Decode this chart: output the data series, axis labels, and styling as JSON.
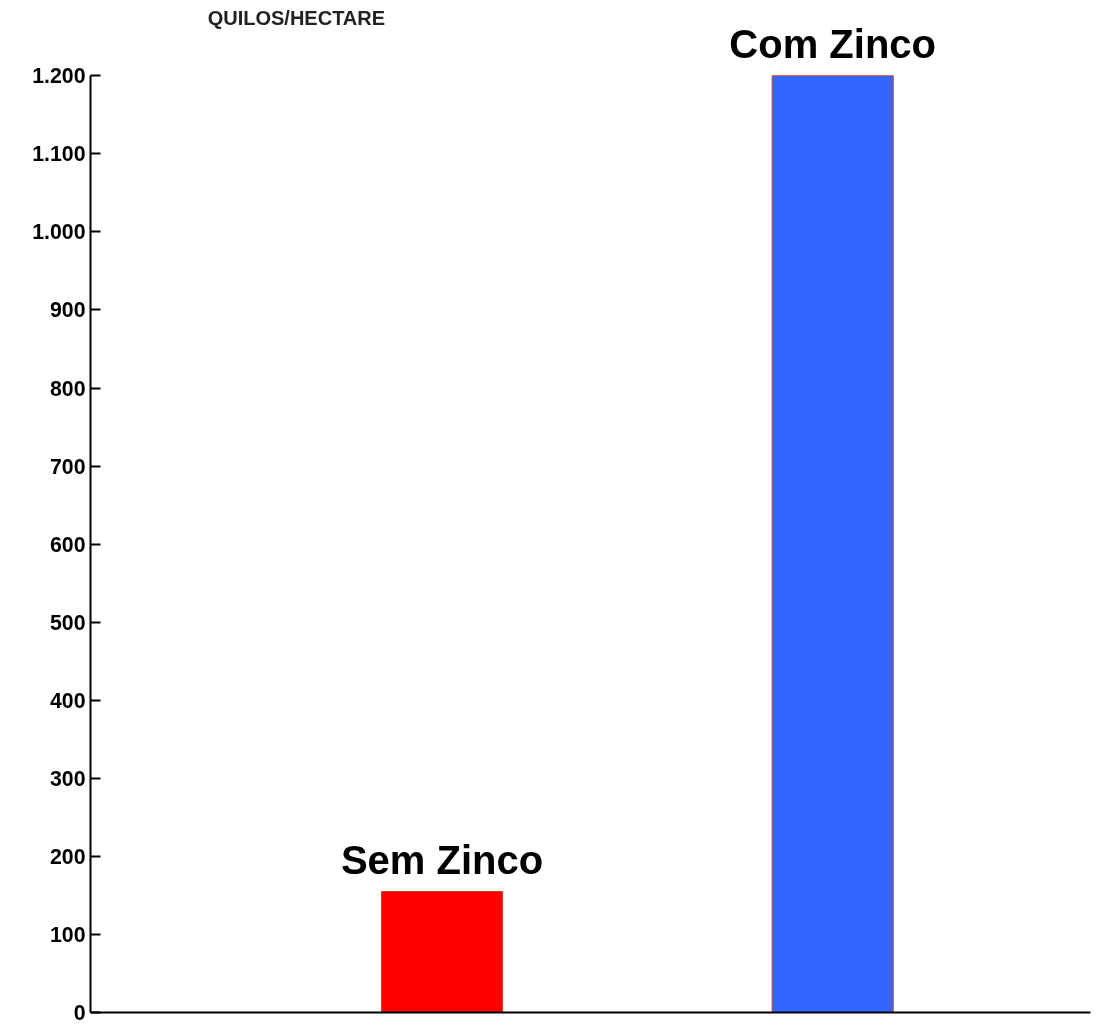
{
  "chart_data": {
    "type": "bar",
    "ylabel": "QUILOS/HECTARE",
    "categories": [
      "Sem Zinco",
      "Com Zinco"
    ],
    "values": [
      155,
      1200
    ],
    "colors": [
      "#ff0000",
      "#3366ff"
    ],
    "ylim": [
      0,
      1200
    ],
    "yticks": [
      0,
      100,
      200,
      300,
      400,
      500,
      600,
      700,
      800,
      900,
      {
        "value": 1000,
        "label": "1.000"
      },
      {
        "value": 1100,
        "label": "1.100"
      },
      {
        "value": 1200,
        "label": "1.200"
      }
    ],
    "grid": false,
    "tick_labels": "y"
  }
}
